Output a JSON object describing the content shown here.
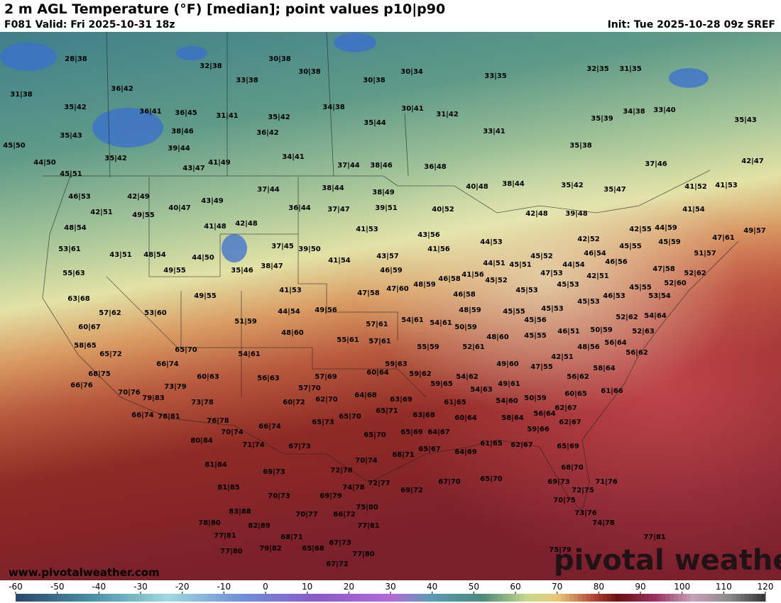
{
  "header": {
    "title": "2 m AGL Temperature (°F) [median]; point values p10|p90",
    "valid": "F081 Valid: Fri 2025-10-31 18z",
    "init": "Init: Tue 2025-10-28 09z SREF"
  },
  "map": {
    "points": [
      "28|38",
      "30|38",
      "32|38",
      "30|38",
      "33|38",
      "30|38",
      "30|34",
      "33|35",
      "32|35",
      "31|35",
      "31|38",
      "36|42",
      "35|42",
      "36|41",
      "36|45",
      "31|41",
      "35|42",
      "34|38",
      "30|41",
      "31|42",
      "35|44",
      "34|38",
      "33|40",
      "35|39",
      "35|43",
      "35|43",
      "38|46",
      "36|42",
      "33|41",
      "45|50",
      "39|44",
      "35|38",
      "35|42",
      "44|50",
      "34|41",
      "41|49",
      "43|47",
      "37|44",
      "38|46",
      "36|48",
      "37|46",
      "42|47",
      "45|51",
      "38|44",
      "35|42",
      "35|47",
      "41|52",
      "41|53",
      "40|48",
      "37|44",
      "38|44",
      "38|49",
      "46|53",
      "42|49",
      "43|49",
      "36|44",
      "37|47",
      "39|51",
      "40|52",
      "42|48",
      "39|48",
      "41|54",
      "40|47",
      "42|51",
      "49|55",
      "41|48",
      "42|48",
      "41|53",
      "48|54",
      "42|55",
      "44|59",
      "47|61",
      "49|57",
      "43|56",
      "42|52",
      "44|53",
      "41|56",
      "37|45",
      "39|50",
      "45|55",
      "45|59",
      "53|61",
      "43|51",
      "48|54",
      "44|50",
      "43|57",
      "46|54",
      "46|56",
      "45|52",
      "51|57",
      "41|54",
      "44|51",
      "45|51",
      "47|53",
      "44|54",
      "35|46",
      "38|47",
      "49|55",
      "47|58",
      "46|59",
      "42|51",
      "55|63",
      "52|62",
      "46|58",
      "41|56",
      "45|52",
      "48|59",
      "47|60",
      "52|60",
      "45|53",
      "45|55",
      "41|53",
      "47|58",
      "45|53",
      "46|58",
      "46|53",
      "49|55",
      "53|54",
      "45|53",
      "63|68",
      "44|54",
      "49|56",
      "48|59",
      "45|55",
      "45|53",
      "54|64",
      "57|62",
      "53|60",
      "52|62",
      "45|56",
      "54|61",
      "54|61",
      "50|59",
      "51|59",
      "57|61",
      "60|67",
      "48|60",
      "50|59",
      "46|51",
      "45|55",
      "48|60",
      "52|63",
      "55|61",
      "57|61",
      "56|64",
      "58|65",
      "52|61",
      "55|59",
      "48|56",
      "65|70",
      "54|61",
      "56|62",
      "42|51",
      "65|72",
      "49|60",
      "47|55",
      "66|74",
      "59|63",
      "58|64",
      "60|64",
      "59|62",
      "54|62",
      "68|75",
      "60|63",
      "56|63",
      "57|69",
      "56|62",
      "59|65",
      "49|61",
      "66|76",
      "73|79",
      "57|70",
      "54|63",
      "61|66",
      "70|76",
      "79|83",
      "60|65",
      "64|68",
      "63|69",
      "54|60",
      "50|59",
      "62|70",
      "60|72",
      "73|78",
      "61|65",
      "62|67",
      "66|74",
      "78|81",
      "76|78",
      "65|71",
      "65|70",
      "63|68",
      "60|64",
      "58|64",
      "56|64",
      "62|67",
      "65|73",
      "66|74",
      "70|74",
      "59|66",
      "65|69",
      "64|67",
      "65|70",
      "80|84",
      "71|74",
      "67|73",
      "65|67",
      "64|69",
      "68|71",
      "61|65",
      "62|67",
      "65|69",
      "70|74",
      "81|84",
      "69|73",
      "72|76",
      "68|70",
      "67|70",
      "65|70",
      "69|73",
      "72|77",
      "69|72",
      "81|85",
      "74|78",
      "72|75",
      "71|76",
      "70|73",
      "69|79",
      "70|75",
      "75|80",
      "83|88",
      "66|72",
      "70|77",
      "73|76",
      "74|78",
      "78|80",
      "82|89",
      "77|81",
      "77|81",
      "68|71",
      "77|81",
      "67|73",
      "65|68",
      "79|82",
      "77|80",
      "77|80",
      "75|79",
      "67|72"
    ],
    "website": "www.pivotalweather.com",
    "logo": "pivotal weather"
  },
  "colorbar": {
    "labels": [
      -60,
      -50,
      -40,
      -30,
      -20,
      -10,
      0,
      10,
      20,
      30,
      40,
      50,
      60,
      70,
      80,
      90,
      100,
      110,
      120
    ]
  }
}
